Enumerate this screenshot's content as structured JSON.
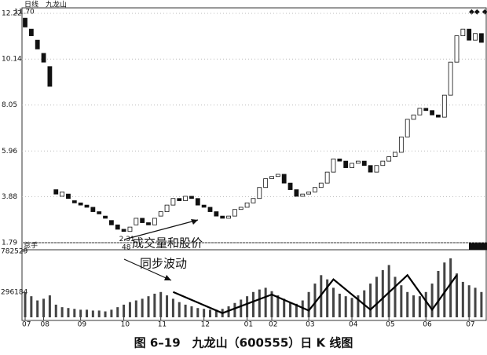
{
  "chart_data": {
    "type": "candlestick",
    "title": "日线",
    "stock": "九龙山",
    "categories": [
      "07",
      null,
      null,
      "08",
      null,
      null,
      null,
      null,
      null,
      "09",
      null,
      null,
      null,
      null,
      null,
      null,
      "10",
      null,
      null,
      null,
      null,
      null,
      "11",
      null,
      null,
      null,
      null,
      null,
      null,
      "12",
      null,
      null,
      null,
      null,
      null,
      null,
      "01",
      null,
      null,
      null,
      "02",
      null,
      null,
      null,
      null,
      null,
      "03",
      null,
      null,
      null,
      null,
      null,
      null,
      "04",
      null,
      null,
      null,
      null,
      null,
      "05",
      null,
      null,
      null,
      null,
      null,
      "06",
      null,
      null,
      null,
      null,
      null,
      null,
      "07",
      null,
      null
    ],
    "open": [
      12.0,
      11.5,
      11.0,
      10.4,
      9.8,
      4.2,
      3.9,
      4.0,
      3.7,
      3.6,
      3.5,
      3.4,
      3.2,
      3.0,
      2.8,
      2.6,
      2.4,
      2.3,
      2.6,
      2.9,
      2.7,
      2.6,
      3.0,
      3.2,
      3.5,
      3.8,
      3.7,
      3.9,
      3.8,
      3.5,
      3.4,
      3.2,
      3.0,
      2.9,
      3.0,
      3.3,
      3.4,
      3.6,
      3.8,
      4.3,
      4.7,
      4.8,
      4.9,
      4.5,
      4.2,
      3.9,
      4.0,
      4.1,
      4.3,
      4.5,
      5.0,
      5.6,
      5.5,
      5.2,
      5.4,
      5.5,
      5.3,
      5.0,
      5.3,
      5.5,
      5.7,
      5.9,
      6.6,
      7.4,
      7.6,
      7.9,
      7.8,
      7.6,
      7.5,
      8.5,
      10.0,
      11.2,
      11.5,
      11.0,
      11.3
    ],
    "close": [
      11.6,
      11.2,
      10.6,
      10.0,
      8.9,
      4.0,
      4.1,
      3.8,
      3.6,
      3.5,
      3.4,
      3.2,
      3.1,
      2.9,
      2.6,
      2.4,
      2.3,
      2.5,
      2.9,
      2.7,
      2.6,
      2.9,
      3.2,
      3.5,
      3.8,
      3.7,
      3.9,
      3.8,
      3.5,
      3.4,
      3.2,
      3.0,
      2.9,
      3.0,
      3.3,
      3.4,
      3.6,
      3.8,
      4.3,
      4.7,
      4.8,
      4.9,
      4.5,
      4.2,
      3.9,
      4.0,
      4.1,
      4.3,
      4.5,
      5.0,
      5.6,
      5.5,
      5.2,
      5.4,
      5.5,
      5.3,
      5.0,
      5.3,
      5.5,
      5.7,
      5.9,
      6.6,
      7.4,
      7.6,
      7.9,
      7.8,
      7.6,
      7.5,
      8.5,
      10.0,
      11.2,
      11.5,
      11.0,
      11.3,
      10.9
    ],
    "ylim": [
      1.79,
      12.22
    ],
    "yticks": [
      12.22,
      10.14,
      8.05,
      5.96,
      3.88,
      1.79
    ],
    "low_label": "2.31",
    "high_label": "11.70",
    "volume": {
      "label": "总手",
      "sub_label": "48",
      "values": [
        300000,
        250000,
        200000,
        220000,
        260000,
        150000,
        120000,
        110000,
        100000,
        90000,
        90000,
        80000,
        80000,
        70000,
        90000,
        120000,
        150000,
        180000,
        200000,
        220000,
        250000,
        280000,
        300000,
        260000,
        220000,
        180000,
        150000,
        130000,
        110000,
        100000,
        90000,
        90000,
        100000,
        130000,
        170000,
        210000,
        250000,
        300000,
        330000,
        350000,
        310000,
        260000,
        220000,
        180000,
        160000,
        200000,
        300000,
        400000,
        500000,
        450000,
        350000,
        280000,
        250000,
        230000,
        260000,
        320000,
        400000,
        480000,
        560000,
        620000,
        480000,
        380000,
        300000,
        260000,
        250000,
        300000,
        400000,
        550000,
        650000,
        700000,
        520000,
        420000,
        380000,
        350000,
        300000
      ],
      "ylim": [
        0,
        857000
      ],
      "yticks": [
        782529,
        296184
      ]
    },
    "trend_line": {
      "x": [
        24,
        32,
        40,
        46,
        50,
        56,
        62,
        66,
        70
      ],
      "values": [
        300000,
        50000,
        270000,
        80000,
        450000,
        90000,
        500000,
        90000,
        500000
      ]
    },
    "annotation": [
      "成交量和股价",
      "同步波动"
    ]
  },
  "caption": "图 6–19　九龙山（600555）日 K 线图"
}
